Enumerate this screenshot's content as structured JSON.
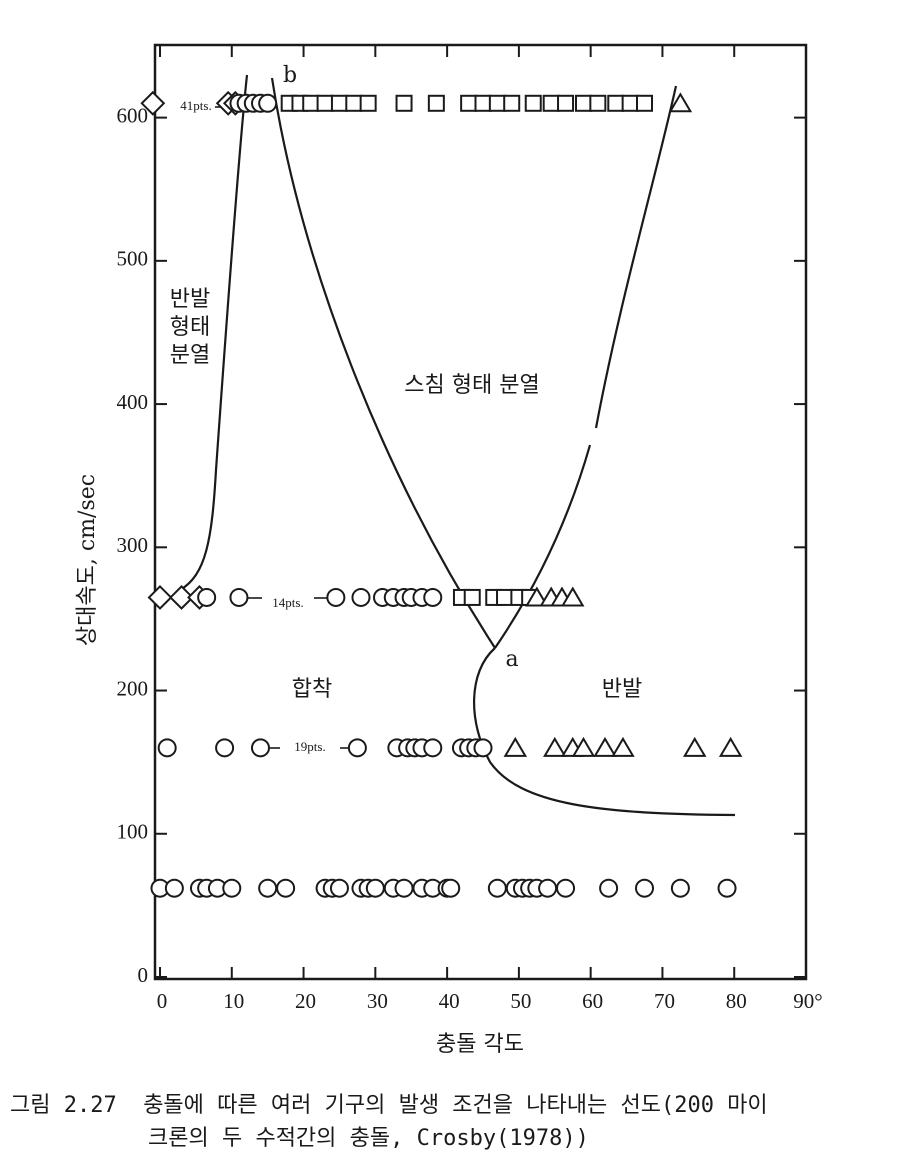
{
  "chart_data": {
    "type": "scatter",
    "xlabel": "충돌 각도",
    "ylabel": "상대속도, cm/sec",
    "xlim": [
      0,
      90
    ],
    "ylim": [
      0,
      650
    ],
    "xticks": [
      0,
      10,
      20,
      30,
      40,
      50,
      60,
      70,
      80,
      {
        "value": 90,
        "label": "90°"
      }
    ],
    "yticks": [
      0,
      100,
      200,
      300,
      400,
      500,
      600
    ],
    "series": [
      {
        "marker": "circle",
        "color": "#1a1a1a",
        "x": [
          0,
          2,
          5.5,
          6.5,
          8,
          10,
          15,
          17.5,
          23,
          24,
          25,
          28,
          29,
          30,
          32.5,
          34,
          36.5,
          38,
          40,
          40.5,
          47,
          49.5,
          50.5,
          51.5,
          52.5,
          54,
          56.5,
          62.5,
          67.5,
          72.5,
          79
        ],
        "values": [
          62,
          62,
          62,
          62,
          62,
          62,
          62,
          62,
          62,
          62,
          62,
          62,
          62,
          62,
          62,
          62,
          62,
          62,
          62,
          62,
          62,
          62,
          62,
          62,
          62,
          62,
          62,
          62,
          62,
          62,
          62
        ]
      },
      {
        "marker": "circle",
        "color": "#1a1a1a",
        "x": [
          1,
          9,
          14,
          27.5,
          33,
          34.5,
          35.5,
          36.5,
          38,
          42,
          43,
          44,
          45
        ],
        "values": [
          160,
          160,
          160,
          160,
          160,
          160,
          160,
          160,
          160,
          160,
          160,
          160,
          160
        ]
      },
      {
        "marker": "triangle",
        "color": "#1a1a1a",
        "x": [
          49.5,
          55,
          57.5,
          59,
          62,
          64.5,
          74.5,
          79.5
        ],
        "values": [
          160,
          160,
          160,
          160,
          160,
          160,
          160,
          160
        ]
      },
      {
        "marker": "diamond",
        "color": "#1a1a1a",
        "x": [
          0,
          3,
          5.5
        ],
        "values": [
          265,
          265,
          265
        ]
      },
      {
        "marker": "circle",
        "color": "#1a1a1a",
        "x": [
          6.5,
          11,
          24.5,
          28,
          31,
          32.5,
          34,
          35,
          36.5,
          38
        ],
        "values": [
          265,
          265,
          265,
          265,
          265,
          265,
          265,
          265,
          265,
          265
        ]
      },
      {
        "marker": "square",
        "color": "#1a1a1a",
        "x": [
          42,
          43.5,
          46.5,
          48,
          50,
          51.5
        ],
        "values": [
          265,
          265,
          265,
          265,
          265,
          265
        ]
      },
      {
        "marker": "triangle",
        "color": "#1a1a1a",
        "x": [
          52.5,
          54.5,
          56,
          57.5
        ],
        "values": [
          265,
          265,
          265,
          265
        ]
      },
      {
        "marker": "diamond",
        "color": "#1a1a1a",
        "x": [
          -1,
          9.5,
          10.5
        ],
        "values": [
          610,
          610,
          610
        ]
      },
      {
        "marker": "circle",
        "color": "#1a1a1a",
        "x": [
          11,
          12,
          13,
          14,
          15
        ],
        "values": [
          610,
          610,
          610,
          610,
          610
        ]
      },
      {
        "marker": "square",
        "color": "#1a1a1a",
        "x": [
          18,
          19.5,
          21,
          23,
          25,
          27,
          29,
          34,
          38.5,
          43,
          45,
          47,
          49,
          52,
          54.5,
          56.5,
          59,
          61,
          63.5,
          65.5,
          67.5
        ],
        "values": [
          610,
          610,
          610,
          610,
          610,
          610,
          610,
          610,
          610,
          610,
          610,
          610,
          610,
          610,
          610,
          610,
          610,
          610,
          610,
          610,
          610
        ]
      },
      {
        "marker": "triangle",
        "color": "#1a1a1a",
        "x": [
          72.5
        ],
        "values": [
          610
        ]
      }
    ],
    "annotations": [
      "b",
      "a",
      "41pts.",
      "14pts.",
      "19pts.",
      "반발",
      "형태",
      "분열",
      "스침 형태 분열",
      "합착",
      "반발"
    ],
    "caption": [
      "그림 2.27  충돌에 따른 여러 기구의 발생 조건을 나타내는 선도(200 마이",
      "크론의 두 수적간의 충돌, Crosby(1978))"
    ]
  }
}
